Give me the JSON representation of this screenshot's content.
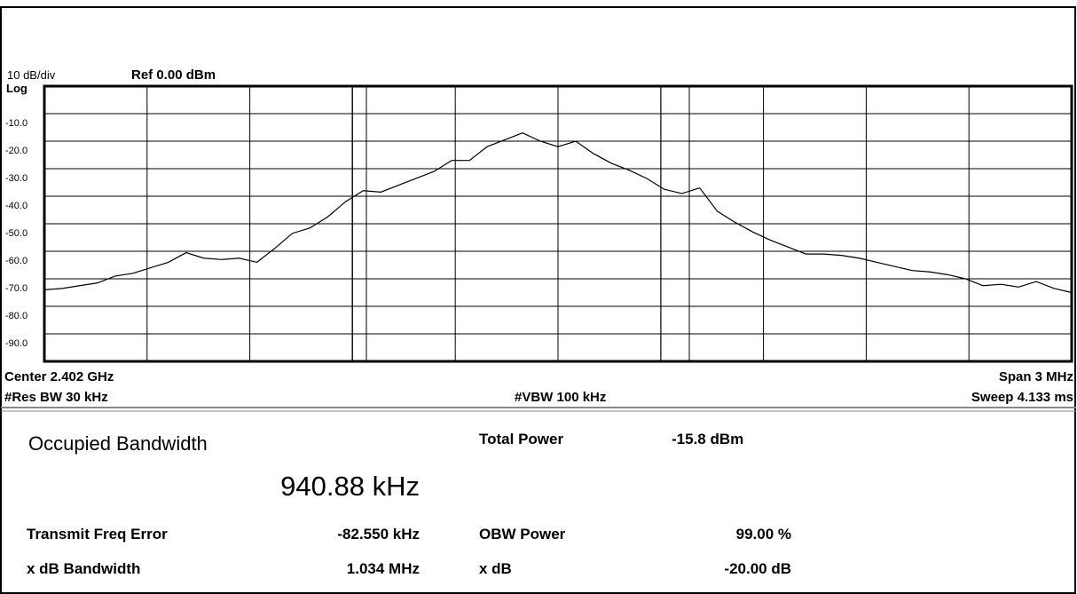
{
  "chart_data": {
    "type": "line",
    "div_label": "10 dB/div",
    "ref_label": "Ref 0.00 dBm",
    "y_scale_label": "Log",
    "ylim": [
      -100,
      0
    ],
    "yticks": [
      {
        "value": -10,
        "label": "-10.0"
      },
      {
        "value": -20,
        "label": "-20.0"
      },
      {
        "value": -30,
        "label": "-30.0"
      },
      {
        "value": -40,
        "label": "-40.0"
      },
      {
        "value": -50,
        "label": "-50.0"
      },
      {
        "value": -60,
        "label": "-60.0"
      },
      {
        "value": -70,
        "label": "-70.0"
      },
      {
        "value": -80,
        "label": "-80.0"
      },
      {
        "value": -90,
        "label": "-90.0"
      }
    ],
    "grid": true,
    "color": "#000000",
    "values": [
      -74,
      -73.5,
      -72.5,
      -71.5,
      -69,
      -68,
      -66,
      -64,
      -60.5,
      -62.5,
      -63,
      -62.5,
      -64,
      -59,
      -53.5,
      -51.5,
      -47.5,
      -42,
      -38,
      -38.5,
      -36,
      -33.5,
      -31,
      -27,
      -27,
      -22,
      -19.5,
      -17,
      -20,
      -22,
      -20,
      -24.5,
      -28,
      -30.5,
      -33.5,
      -37.5,
      -39,
      -37,
      -45.5,
      -49.5,
      -53,
      -56,
      -58.5,
      -61,
      -61,
      -61.5,
      -62.5,
      -64,
      -65.5,
      -67,
      -67.5,
      -68.5,
      -70,
      -72.5,
      -72,
      -73,
      -71,
      -73.5,
      -75
    ],
    "center": "Center  2.402 GHz",
    "span": "Span 3 MHz",
    "res_bw": "#Res BW  30 kHz",
    "vbw": "#VBW  100 kHz",
    "sweep": "Sweep  4.133 ms"
  },
  "measurements": {
    "title": "Occupied Bandwidth",
    "obw": "940.88 kHz",
    "total_power_label": "Total Power",
    "total_power": "-15.8 dBm",
    "freq_error_label": "Transmit Freq Error",
    "freq_error": "-82.550 kHz",
    "obw_power_label": "OBW Power",
    "obw_power": "99.00 %",
    "xdb_bw_label": "x dB Bandwidth",
    "xdb_bw": "1.034 MHz",
    "xdb_label": "x dB",
    "xdb": "-20.00 dB"
  }
}
